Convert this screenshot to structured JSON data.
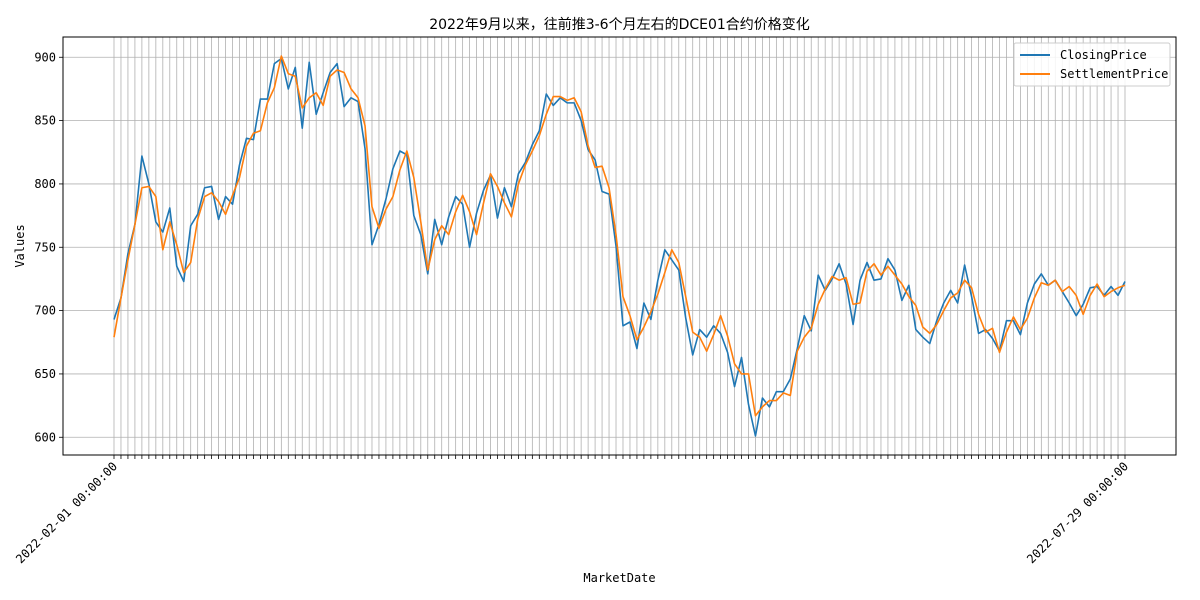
{
  "chart_data": {
    "type": "line",
    "title": "2022年9月以来，往前推3-6个月左右的DCE01合约价格变化",
    "xlabel": "MarketDate",
    "ylabel": "Values",
    "ylim": [
      586,
      916
    ],
    "yticks": [
      600,
      650,
      700,
      750,
      800,
      850,
      900
    ],
    "grid": true,
    "legend_position": "top-right",
    "x_tick_first": "2022-02-01 00:00:00",
    "x_tick_last": "2022-07-29 00:00:00",
    "series": [
      {
        "name": "ClosingPrice",
        "color": "#1f77b4",
        "values": [
          693,
          710,
          745,
          768,
          822,
          800,
          770,
          762,
          781,
          735,
          723,
          767,
          776,
          797,
          798,
          772,
          790,
          784,
          815,
          836,
          835,
          867,
          867,
          895,
          899,
          875,
          892,
          844,
          896,
          855,
          872,
          888,
          895,
          861,
          868,
          865,
          828,
          752,
          768,
          788,
          812,
          826,
          823,
          775,
          760,
          729,
          772,
          752,
          774,
          790,
          784,
          750,
          777,
          795,
          807,
          773,
          797,
          782,
          808,
          817,
          831,
          842,
          871,
          862,
          868,
          864,
          864,
          850,
          827,
          819,
          794,
          792,
          751,
          688,
          691,
          670,
          706,
          693,
          724,
          748,
          740,
          732,
          694,
          665,
          685,
          679,
          688,
          682,
          667,
          640,
          663,
          626,
          601,
          631,
          624,
          636,
          636,
          646,
          670,
          696,
          684,
          728,
          716,
          725,
          737,
          721,
          689,
          724,
          738,
          724,
          725,
          741,
          732,
          708,
          720,
          685,
          679,
          674,
          692,
          706,
          716,
          706,
          736,
          711,
          682,
          685,
          678,
          668,
          692,
          692,
          681,
          706,
          721,
          729,
          720,
          724,
          715,
          706,
          696,
          705,
          718,
          719,
          712,
          719,
          712,
          723
        ]
      },
      {
        "name": "SettlementPrice",
        "color": "#ff7f0e",
        "values": [
          679,
          710,
          740,
          768,
          797,
          798,
          790,
          748,
          770,
          752,
          730,
          738,
          772,
          790,
          793,
          786,
          776,
          791,
          805,
          830,
          840,
          842,
          864,
          876,
          901,
          887,
          885,
          860,
          868,
          872,
          862,
          885,
          890,
          888,
          875,
          868,
          846,
          782,
          765,
          780,
          790,
          811,
          826,
          805,
          770,
          732,
          756,
          767,
          760,
          778,
          791,
          778,
          760,
          785,
          808,
          798,
          785,
          774,
          800,
          815,
          826,
          838,
          855,
          869,
          869,
          866,
          868,
          857,
          830,
          813,
          814,
          797,
          760,
          711,
          696,
          677,
          687,
          699,
          713,
          730,
          748,
          738,
          711,
          683,
          679,
          668,
          681,
          696,
          680,
          658,
          650,
          650,
          617,
          624,
          629,
          629,
          635,
          633,
          668,
          679,
          686,
          705,
          717,
          727,
          724,
          726,
          705,
          706,
          731,
          737,
          728,
          735,
          728,
          721,
          711,
          704,
          687,
          682,
          689,
          700,
          710,
          714,
          724,
          718,
          697,
          683,
          686,
          667,
          683,
          695,
          685,
          694,
          710,
          722,
          720,
          724,
          715,
          719,
          712,
          697,
          712,
          721,
          711,
          715,
          718,
          720
        ]
      }
    ]
  }
}
